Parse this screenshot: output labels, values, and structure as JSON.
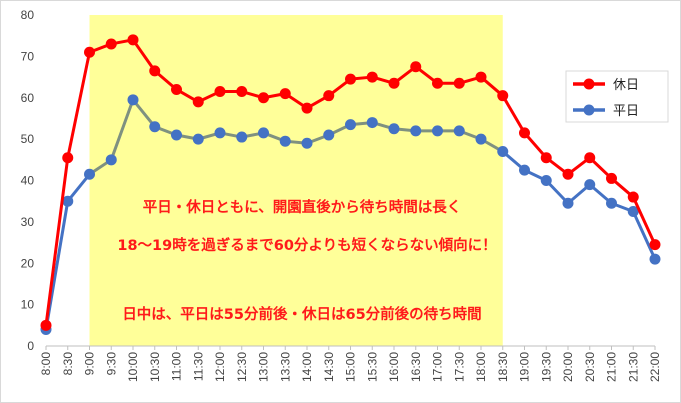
{
  "chart_data": {
    "type": "line",
    "title": "",
    "xlabel": "",
    "ylabel": "",
    "ylim": [
      0,
      80
    ],
    "yticks": [
      "0",
      "10",
      "20",
      "30",
      "40",
      "50",
      "60",
      "70",
      "80"
    ],
    "x": [
      "8:00",
      "8:30",
      "9:00",
      "9:30",
      "10:00",
      "10:30",
      "11:00",
      "11:30",
      "12:00",
      "12:30",
      "13:00",
      "13:30",
      "14:00",
      "14:30",
      "15:00",
      "15:30",
      "16:00",
      "16:30",
      "17:00",
      "17:30",
      "18:00",
      "18:30",
      "19:00",
      "19:30",
      "20:00",
      "20:30",
      "21:00",
      "21:30",
      "22:00"
    ],
    "series": [
      {
        "name": "休日",
        "color": "#ff0000",
        "values": [
          5,
          45.5,
          71,
          73,
          74,
          66.5,
          62,
          59,
          61.5,
          61.5,
          60,
          61,
          57.5,
          60.5,
          64.5,
          65,
          63.5,
          67.5,
          63.5,
          63.5,
          65,
          60.5,
          51.5,
          45.5,
          41.5,
          45.5,
          40.5,
          36,
          24.5
        ]
      },
      {
        "name": "平日",
        "color": "#4472c4",
        "values": [
          4,
          35,
          41.5,
          45,
          59.5,
          53,
          51,
          50,
          51.5,
          50.5,
          51.5,
          49.5,
          49,
          51,
          53.5,
          54,
          52.5,
          52,
          52,
          52,
          50,
          47,
          42.5,
          40,
          34.5,
          39,
          34.5,
          32.5,
          21
        ]
      }
    ],
    "highlight": {
      "from": "9:00",
      "to": "18:30",
      "color": "#ffff99",
      "inside_line_color": "#7f9180"
    },
    "legend": {
      "placement": "right",
      "items": [
        "休日",
        "平日"
      ]
    },
    "annotations": [
      "平日・休日ともに、開園直後から待ち時間は長く",
      "18～19時を過ぎるまで60分よりも短くならない傾向に！",
      "日中は、平日は55分前後・休日は65分前後の待ち時間"
    ],
    "grid": false
  }
}
